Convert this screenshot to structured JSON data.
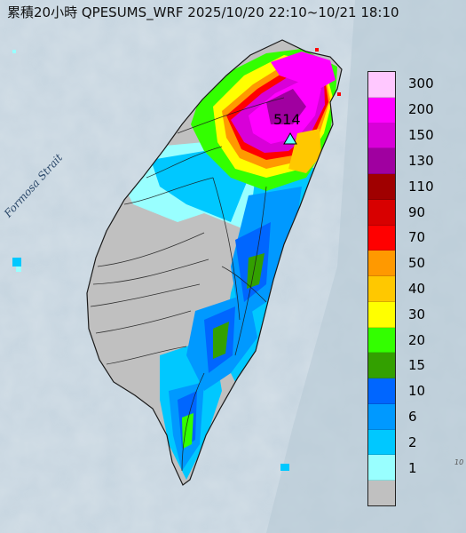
{
  "title": "累積20小時 QPESUMS_WRF 2025/10/20 22:10~10/21 18:10",
  "map": {
    "strait_label": "Formosa Strait",
    "max_value_label": "514",
    "corner_label": "10"
  },
  "legend": {
    "units": "",
    "items": [
      {
        "label": "300",
        "color": "#ffc8ff"
      },
      {
        "label": "200",
        "color": "#ff00ff"
      },
      {
        "label": "150",
        "color": "#d800d8"
      },
      {
        "label": "130",
        "color": "#a000a0"
      },
      {
        "label": "110",
        "color": "#a00000"
      },
      {
        "label": "90",
        "color": "#d80000"
      },
      {
        "label": "70",
        "color": "#ff0000"
      },
      {
        "label": "50",
        "color": "#ff9900"
      },
      {
        "label": "40",
        "color": "#ffc800"
      },
      {
        "label": "30",
        "color": "#ffff00"
      },
      {
        "label": "20",
        "color": "#33ff00"
      },
      {
        "label": "15",
        "color": "#33a000"
      },
      {
        "label": "10",
        "color": "#0066ff"
      },
      {
        "label": "6",
        "color": "#0099ff"
      },
      {
        "label": "2",
        "color": "#00c8ff"
      },
      {
        "label": "1",
        "color": "#99ffff"
      },
      {
        "label": "",
        "color": "#c0c0c0"
      }
    ]
  },
  "colors": {
    "sea": "#c5d4df",
    "no_rain": "#c0c0c0",
    "station_marker": "#66ffff"
  }
}
